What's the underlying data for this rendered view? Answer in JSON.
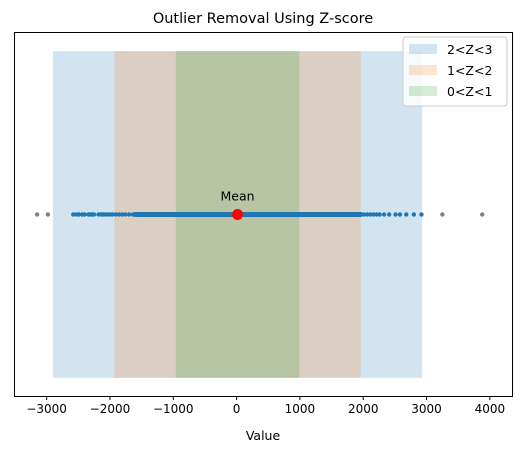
{
  "chart_data": {
    "type": "scatter",
    "title": "Outlier Removal Using Z-score",
    "xlabel": "Value",
    "ylabel": "",
    "xlim": [
      -3500,
      4350
    ],
    "ylim": [
      -1,
      1
    ],
    "xticks": [
      -3000,
      -2000,
      -1000,
      0,
      1000,
      2000,
      3000,
      4000
    ],
    "xtick_labels": [
      "−3000",
      "−2000",
      "−1000",
      "0",
      "1000",
      "2000",
      "3000",
      "4000"
    ],
    "yticks_visible": false,
    "grid": false,
    "legend_position": "top-right",
    "bands": [
      {
        "label": "2<Z<3",
        "x0": -2900,
        "x1": 2930,
        "color": "#1f77b4",
        "alpha": 0.2
      },
      {
        "label": "1<Z<2",
        "x0": -1930,
        "x1": 1960,
        "color": "#ff7f0e",
        "alpha": 0.2
      },
      {
        "label": "0<Z<1",
        "x0": -960,
        "x1": 990,
        "color": "#2ca02c",
        "alpha": 0.2
      }
    ],
    "band_y_range": [
      -0.9,
      0.9
    ],
    "mean": {
      "label": "Mean",
      "x": 15,
      "color": "#ff0000"
    },
    "outliers": {
      "color": "#808080",
      "x": [
        -3150,
        -2980,
        3250,
        3880
      ]
    },
    "points": {
      "color": "#1f77b4",
      "x": [
        -2580,
        -2530,
        -2490,
        -2440,
        -2400,
        -2340,
        -2310,
        -2280,
        -2250,
        -2180,
        -2140,
        -2110,
        -2080,
        -2040,
        -2000,
        -1960,
        -1910,
        -1860,
        -1810,
        -1760,
        -1700,
        -1640,
        -1580,
        2010,
        2060,
        2110,
        2160,
        2210,
        2260,
        2330,
        2410,
        2510,
        2580,
        2680,
        2800,
        2920
      ],
      "dense_range": [
        -1600,
        1960
      ]
    }
  }
}
